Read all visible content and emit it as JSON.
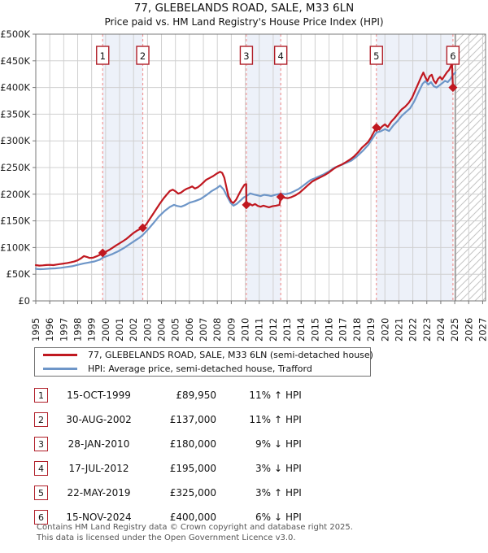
{
  "title": "77, GLEBELANDS ROAD, SALE, M33 6LN",
  "subtitle": "Price paid vs. HM Land Registry's House Price Index (HPI)",
  "legend": [
    {
      "label": "77, GLEBELANDS ROAD, SALE, M33 6LN (semi-detached house)",
      "color": "#c01820"
    },
    {
      "label": "HPI: Average price, semi-detached house, Trafford",
      "color": "#6e96c8"
    }
  ],
  "transactions": [
    {
      "num": "1",
      "date": "15-OCT-1999",
      "price": "£89,950",
      "pct": "11%",
      "dir": "↑",
      "rel": "HPI"
    },
    {
      "num": "2",
      "date": "30-AUG-2002",
      "price": "£137,000",
      "pct": "11%",
      "dir": "↑",
      "rel": "HPI"
    },
    {
      "num": "3",
      "date": "28-JAN-2010",
      "price": "£180,000",
      "pct": "9%",
      "dir": "↓",
      "rel": "HPI"
    },
    {
      "num": "4",
      "date": "17-JUL-2012",
      "price": "£195,000",
      "pct": "3%",
      "dir": "↓",
      "rel": "HPI"
    },
    {
      "num": "5",
      "date": "22-MAY-2019",
      "price": "£325,000",
      "pct": "3%",
      "dir": "↑",
      "rel": "HPI"
    },
    {
      "num": "6",
      "date": "15-NOV-2024",
      "price": "£400,000",
      "pct": "6%",
      "dir": "↓",
      "rel": "HPI"
    }
  ],
  "footer": {
    "line1": "Contains HM Land Registry data © Crown copyright and database right 2025.",
    "line2": "This data is licensed under the Open Government Licence v3.0."
  },
  "chart_data": {
    "type": "line",
    "title": "77, GLEBELANDS ROAD, SALE, M33 6LN",
    "subtitle": "Price paid vs. HM Land Registry's House Price Index (HPI)",
    "x_unit": "year",
    "y_unit": "GBP (thousands)",
    "x_range": [
      1995,
      2027.3
    ],
    "y_range": [
      0,
      500
    ],
    "y_tick_step": 50,
    "x_ticks": [
      1995,
      1996,
      1997,
      1998,
      1999,
      2000,
      2001,
      2002,
      2003,
      2004,
      2005,
      2006,
      2007,
      2008,
      2009,
      2010,
      2011,
      2012,
      2013,
      2014,
      2015,
      2016,
      2017,
      2018,
      2019,
      2020,
      2021,
      2022,
      2023,
      2024,
      2025,
      2026,
      2027
    ],
    "grid": true,
    "legend_position": "bottom",
    "future_start": 2025.05,
    "ownership_bands": [
      [
        1999.79,
        2002.66
      ],
      [
        2010.08,
        2012.54
      ],
      [
        2019.39,
        2024.87
      ]
    ],
    "sales": [
      {
        "n": "1",
        "x": 1999.79,
        "y": 89.95
      },
      {
        "n": "2",
        "x": 2002.66,
        "y": 137
      },
      {
        "n": "3",
        "x": 2010.08,
        "y": 180
      },
      {
        "n": "4",
        "x": 2012.54,
        "y": 195
      },
      {
        "n": "5",
        "x": 2019.39,
        "y": 325
      },
      {
        "n": "6",
        "x": 2024.87,
        "y": 400
      }
    ],
    "colors": {
      "red_line": "#c01820",
      "blue_line": "#6e96c8",
      "band": "#edf1f9",
      "dashed": "#f09898",
      "grid": "#d0d0d0",
      "spine": "#787878",
      "hatch": "#c4c4c4",
      "boundary": "#999999",
      "box_border": "#b01e28"
    },
    "series": [
      {
        "name": "77, GLEBELANDS ROAD, SALE, M33 6LN (semi-detached house)",
        "color": "#c01820",
        "points": [
          [
            1995,
            67
          ],
          [
            1995.25,
            66.2
          ],
          [
            1995.5,
            66.6
          ],
          [
            1995.75,
            67.2
          ],
          [
            1996,
            67.6
          ],
          [
            1996.25,
            67.1
          ],
          [
            1996.5,
            68.2
          ],
          [
            1996.75,
            69
          ],
          [
            1997,
            70
          ],
          [
            1997.25,
            71
          ],
          [
            1997.5,
            72.2
          ],
          [
            1997.75,
            73.8
          ],
          [
            1998,
            76
          ],
          [
            1998.25,
            80
          ],
          [
            1998.45,
            84
          ],
          [
            1998.65,
            82.5
          ],
          [
            1998.85,
            80.5
          ],
          [
            1999.1,
            81
          ],
          [
            1999.35,
            83.5
          ],
          [
            1999.6,
            86.5
          ],
          [
            1999.79,
            89.95
          ],
          [
            2000,
            92
          ],
          [
            2000.25,
            95.5
          ],
          [
            2000.5,
            99.5
          ],
          [
            2000.75,
            104
          ],
          [
            2001,
            108
          ],
          [
            2001.25,
            112
          ],
          [
            2001.5,
            116.5
          ],
          [
            2001.75,
            122
          ],
          [
            2002,
            127.5
          ],
          [
            2002.3,
            132.5
          ],
          [
            2002.66,
            137
          ],
          [
            2002.9,
            143
          ],
          [
            2003.15,
            153
          ],
          [
            2003.4,
            163
          ],
          [
            2003.65,
            173
          ],
          [
            2003.9,
            183
          ],
          [
            2004.15,
            192
          ],
          [
            2004.4,
            200
          ],
          [
            2004.6,
            206
          ],
          [
            2004.8,
            208.5
          ],
          [
            2005,
            205.5
          ],
          [
            2005.2,
            201
          ],
          [
            2005.4,
            203
          ],
          [
            2005.6,
            207
          ],
          [
            2005.8,
            210
          ],
          [
            2006,
            212
          ],
          [
            2006.2,
            214.5
          ],
          [
            2006.4,
            210.5
          ],
          [
            2006.6,
            213
          ],
          [
            2006.8,
            217
          ],
          [
            2007,
            222
          ],
          [
            2007.2,
            227
          ],
          [
            2007.45,
            230.5
          ],
          [
            2007.7,
            234
          ],
          [
            2007.95,
            238.5
          ],
          [
            2008.2,
            242
          ],
          [
            2008.35,
            240
          ],
          [
            2008.5,
            231
          ],
          [
            2008.65,
            213
          ],
          [
            2008.8,
            196
          ],
          [
            2009,
            186
          ],
          [
            2009.15,
            183.5
          ],
          [
            2009.35,
            190
          ],
          [
            2009.55,
            200
          ],
          [
            2009.75,
            210
          ],
          [
            2009.95,
            218
          ],
          [
            2010.07,
            219
          ],
          [
            2010.08,
            180
          ],
          [
            2010.3,
            182.5
          ],
          [
            2010.5,
            179
          ],
          [
            2010.7,
            181.5
          ],
          [
            2010.9,
            178
          ],
          [
            2011.1,
            176.5
          ],
          [
            2011.3,
            178.5
          ],
          [
            2011.5,
            177
          ],
          [
            2011.7,
            175.5
          ],
          [
            2011.95,
            177.5
          ],
          [
            2012.2,
            178.5
          ],
          [
            2012.45,
            180
          ],
          [
            2012.54,
            195
          ],
          [
            2012.8,
            193.5
          ],
          [
            2013.05,
            192.5
          ],
          [
            2013.3,
            194.5
          ],
          [
            2013.6,
            198
          ],
          [
            2013.9,
            203
          ],
          [
            2014.2,
            210
          ],
          [
            2014.5,
            217
          ],
          [
            2014.8,
            224
          ],
          [
            2015.1,
            228
          ],
          [
            2015.4,
            232
          ],
          [
            2015.7,
            236
          ],
          [
            2016,
            241
          ],
          [
            2016.3,
            247
          ],
          [
            2016.6,
            252
          ],
          [
            2016.9,
            255.5
          ],
          [
            2017.2,
            260
          ],
          [
            2017.5,
            265
          ],
          [
            2017.8,
            271
          ],
          [
            2018.1,
            279
          ],
          [
            2018.35,
            287
          ],
          [
            2018.6,
            293
          ],
          [
            2018.8,
            298
          ],
          [
            2019,
            306
          ],
          [
            2019.2,
            316
          ],
          [
            2019.39,
            325
          ],
          [
            2019.6,
            321
          ],
          [
            2019.8,
            327
          ],
          [
            2020,
            331
          ],
          [
            2020.2,
            326
          ],
          [
            2020.45,
            336
          ],
          [
            2020.7,
            343
          ],
          [
            2020.95,
            351
          ],
          [
            2021.2,
            359
          ],
          [
            2021.45,
            364
          ],
          [
            2021.7,
            371
          ],
          [
            2021.95,
            381
          ],
          [
            2022.2,
            396
          ],
          [
            2022.45,
            411
          ],
          [
            2022.6,
            420
          ],
          [
            2022.75,
            428
          ],
          [
            2022.9,
            419
          ],
          [
            2023.05,
            412
          ],
          [
            2023.2,
            421
          ],
          [
            2023.35,
            424
          ],
          [
            2023.5,
            413
          ],
          [
            2023.65,
            408
          ],
          [
            2023.8,
            416
          ],
          [
            2023.95,
            420
          ],
          [
            2024.1,
            415
          ],
          [
            2024.25,
            421
          ],
          [
            2024.45,
            429
          ],
          [
            2024.6,
            433
          ],
          [
            2024.72,
            440
          ],
          [
            2024.8,
            446
          ],
          [
            2024.87,
            400
          ]
        ]
      },
      {
        "name": "HPI: Average price, semi-detached house, Trafford",
        "color": "#6e96c8",
        "points": [
          [
            1995,
            60
          ],
          [
            1995.3,
            59.5
          ],
          [
            1995.6,
            59.8
          ],
          [
            1996,
            60.5
          ],
          [
            1996.4,
            61
          ],
          [
            1996.8,
            62
          ],
          [
            1997.2,
            63.5
          ],
          [
            1997.6,
            65
          ],
          [
            1998,
            67.5
          ],
          [
            1998.4,
            70
          ],
          [
            1998.8,
            72
          ],
          [
            1999.2,
            74
          ],
          [
            1999.6,
            77.5
          ],
          [
            1999.79,
            81
          ],
          [
            2000.1,
            84
          ],
          [
            2000.5,
            88
          ],
          [
            2000.9,
            93
          ],
          [
            2001.3,
            99
          ],
          [
            2001.7,
            106
          ],
          [
            2002.1,
            113
          ],
          [
            2002.4,
            118
          ],
          [
            2002.66,
            123.5
          ],
          [
            2003,
            133
          ],
          [
            2003.4,
            145
          ],
          [
            2003.8,
            158
          ],
          [
            2004.2,
            168
          ],
          [
            2004.6,
            176
          ],
          [
            2004.9,
            180
          ],
          [
            2005.1,
            178
          ],
          [
            2005.4,
            176.5
          ],
          [
            2005.7,
            179.5
          ],
          [
            2006,
            184
          ],
          [
            2006.4,
            187
          ],
          [
            2006.8,
            191
          ],
          [
            2007.2,
            198
          ],
          [
            2007.6,
            206
          ],
          [
            2008,
            212
          ],
          [
            2008.2,
            216
          ],
          [
            2008.45,
            209
          ],
          [
            2008.7,
            196
          ],
          [
            2008.95,
            184
          ],
          [
            2009.15,
            178.5
          ],
          [
            2009.4,
            182
          ],
          [
            2009.65,
            188
          ],
          [
            2009.9,
            194
          ],
          [
            2010.08,
            196.5
          ],
          [
            2010.35,
            201.5
          ],
          [
            2010.6,
            199.5
          ],
          [
            2010.85,
            198
          ],
          [
            2011.1,
            196.5
          ],
          [
            2011.35,
            199
          ],
          [
            2011.6,
            198
          ],
          [
            2011.85,
            196.5
          ],
          [
            2012.1,
            198.5
          ],
          [
            2012.54,
            201
          ],
          [
            2012.9,
            200
          ],
          [
            2013.2,
            202
          ],
          [
            2013.5,
            205.5
          ],
          [
            2013.8,
            209.5
          ],
          [
            2014.1,
            215
          ],
          [
            2014.4,
            221
          ],
          [
            2014.7,
            227
          ],
          [
            2015,
            230
          ],
          [
            2015.3,
            233.5
          ],
          [
            2015.6,
            237
          ],
          [
            2016,
            243
          ],
          [
            2016.4,
            250
          ],
          [
            2016.8,
            254
          ],
          [
            2017.2,
            258.5
          ],
          [
            2017.6,
            263
          ],
          [
            2018,
            271
          ],
          [
            2018.4,
            281
          ],
          [
            2018.8,
            292
          ],
          [
            2019.1,
            304
          ],
          [
            2019.39,
            315.5
          ],
          [
            2019.7,
            318
          ],
          [
            2020,
            322
          ],
          [
            2020.3,
            318.5
          ],
          [
            2020.6,
            329
          ],
          [
            2020.9,
            337
          ],
          [
            2021.2,
            347
          ],
          [
            2021.5,
            354
          ],
          [
            2021.8,
            361
          ],
          [
            2022.1,
            374
          ],
          [
            2022.4,
            391
          ],
          [
            2022.7,
            407
          ],
          [
            2022.9,
            412
          ],
          [
            2023.1,
            405.5
          ],
          [
            2023.3,
            410
          ],
          [
            2023.5,
            402.5
          ],
          [
            2023.7,
            400
          ],
          [
            2023.9,
            404
          ],
          [
            2024.1,
            408
          ],
          [
            2024.3,
            412.5
          ],
          [
            2024.5,
            410
          ],
          [
            2024.7,
            416
          ],
          [
            2024.87,
            424
          ],
          [
            2025.05,
            428
          ]
        ]
      }
    ]
  }
}
